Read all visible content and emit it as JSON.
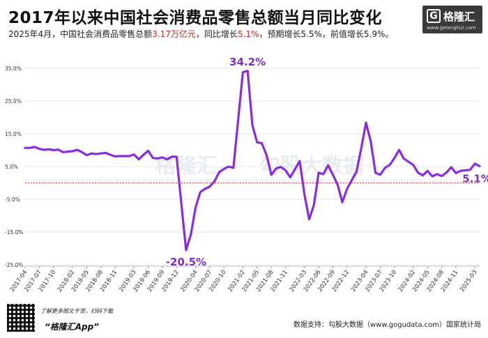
{
  "title": "2017年以来中国社会消费品零售总额当月同比变化",
  "subtitle": {
    "part1": "2025年4月，中国社会消费品零售总额",
    "value": "3.17万亿元",
    "part2": "，同比增长",
    "growth": "5.1%",
    "part3": "，预期增长5.5%，前值增长5.9%。"
  },
  "brand": {
    "name": "格隆汇",
    "url": "www.gelonghui.com",
    "icon": "g-logo-icon"
  },
  "watermarks": [
    "格隆汇",
    "勾股大数据"
  ],
  "footer": {
    "qr_hint": "了解更多图文干货，扫码下载",
    "app_name": "“格隆汇App”",
    "source": "数据支持：勾股大数据（www.gogudata.com）国家统计局"
  },
  "colors": {
    "line": "#8a2be2",
    "zero_line": "#e03030",
    "label": "#7b2fd0",
    "red": "#e02020"
  },
  "chart_data": {
    "type": "line",
    "title": "2017年以来中国社会消费品零售总额当月同比变化",
    "ylim": [
      -25,
      35
    ],
    "yticks": [
      -25,
      -15,
      -5,
      5,
      15,
      25,
      35
    ],
    "ytick_labels": [
      "-25.0%",
      "-15.0%",
      "-5.0%",
      "5.0%",
      "15.0%",
      "25.0%",
      "35.0%"
    ],
    "xtick_labels": [
      "2017-04",
      "2017-07",
      "2017-10",
      "2018-02",
      "2018-05",
      "2018-08",
      "2018-11",
      "2019-03",
      "2019-06",
      "2019-09",
      "2019-12",
      "2020-04",
      "2020-07",
      "2020-10",
      "2021-02",
      "2021-05",
      "2021-08",
      "2021-11",
      "2022-03",
      "2022-06",
      "2022-09",
      "2022-12",
      "2023-04",
      "2023-07",
      "2023-10",
      "2024-02",
      "2024-05",
      "2024-08",
      "2024-11",
      "2025-03"
    ],
    "zero_line": 0,
    "annotations": [
      {
        "text": "34.2%",
        "x": "2021-03",
        "y": 34.2,
        "position": "above"
      },
      {
        "text": "-20.5%",
        "x": "2020-02",
        "y": -20.5,
        "position": "below"
      },
      {
        "text": "5.1%",
        "x": "2025-04",
        "y": 5.1,
        "position": "below-right"
      }
    ],
    "series": [
      {
        "x": [
          "2017-04",
          "2017-05",
          "2017-06",
          "2017-07",
          "2017-08",
          "2017-09",
          "2017-10",
          "2017-11",
          "2017-12",
          "2018-02",
          "2018-03",
          "2018-04",
          "2018-05",
          "2018-06",
          "2018-07",
          "2018-08",
          "2018-09",
          "2018-10",
          "2018-11",
          "2018-12",
          "2019-02",
          "2019-03",
          "2019-04",
          "2019-05",
          "2019-06",
          "2019-07",
          "2019-08",
          "2019-09",
          "2019-10",
          "2019-11",
          "2019-12",
          "2020-02",
          "2020-03",
          "2020-04",
          "2020-05",
          "2020-06",
          "2020-07",
          "2020-08",
          "2020-09",
          "2020-10",
          "2020-11",
          "2020-12",
          "2021-02",
          "2021-03",
          "2021-04",
          "2021-05",
          "2021-06",
          "2021-07",
          "2021-08",
          "2021-09",
          "2021-10",
          "2021-11",
          "2021-12",
          "2022-02",
          "2022-03",
          "2022-04",
          "2022-05",
          "2022-06",
          "2022-07",
          "2022-08",
          "2022-09",
          "2022-10",
          "2022-11",
          "2022-12",
          "2023-02",
          "2023-03",
          "2023-04",
          "2023-05",
          "2023-06",
          "2023-07",
          "2023-08",
          "2023-09",
          "2023-10",
          "2023-11",
          "2023-12",
          "2024-02",
          "2024-03",
          "2024-04",
          "2024-05",
          "2024-06",
          "2024-07",
          "2024-08",
          "2024-09",
          "2024-10",
          "2024-11",
          "2024-12",
          "2025-02",
          "2025-03",
          "2025-04"
        ],
        "values": [
          10.7,
          10.7,
          11.0,
          10.4,
          10.1,
          10.3,
          10.0,
          10.2,
          9.4,
          9.7,
          10.1,
          9.4,
          8.5,
          9.0,
          8.8,
          9.0,
          9.2,
          8.6,
          8.1,
          8.2,
          8.2,
          8.7,
          7.2,
          8.6,
          9.8,
          7.6,
          7.5,
          7.8,
          7.2,
          8.0,
          8.0,
          -20.5,
          -15.8,
          -7.5,
          -2.8,
          -1.8,
          -1.1,
          0.5,
          3.3,
          4.3,
          5.0,
          4.6,
          33.8,
          34.2,
          17.7,
          12.4,
          12.1,
          8.5,
          2.5,
          4.4,
          4.9,
          3.9,
          1.7,
          6.7,
          -3.5,
          -11.1,
          -6.7,
          3.1,
          2.7,
          5.4,
          2.5,
          -0.5,
          -5.9,
          -1.8,
          3.5,
          10.6,
          18.4,
          12.7,
          3.1,
          2.5,
          4.6,
          5.5,
          7.6,
          10.1,
          7.4,
          5.5,
          3.1,
          2.3,
          3.7,
          2.0,
          2.7,
          2.1,
          3.2,
          4.8,
          3.0,
          3.7,
          4.0,
          5.9,
          5.1
        ]
      }
    ]
  }
}
